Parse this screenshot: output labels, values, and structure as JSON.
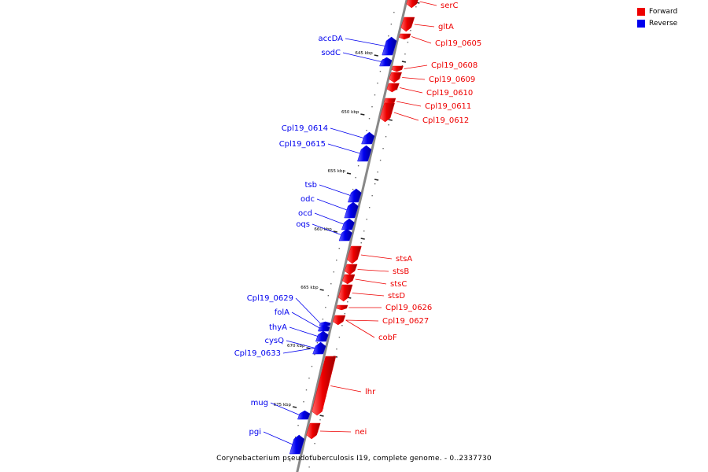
{
  "caption": "Corynebacterium pseudotuberculosis I19, complete genome. - 0..2337730",
  "colors": {
    "forward": "#ee0000",
    "reverse": "#0000ee",
    "backbone": "#888888"
  },
  "legend": [
    {
      "label": "Forward",
      "color": "#ee0000"
    },
    {
      "label": "Reverse",
      "color": "#0000ee"
    }
  ],
  "ticks": [
    "645 kbp",
    "650 kbp",
    "655 kbp",
    "660 kbp",
    "665 kbp",
    "670 kbp",
    "675 kbp"
  ],
  "genes_forward": [
    "serC",
    "gltA",
    "Cpl19_0605",
    "Cpl19_0608",
    "Cpl19_0609",
    "Cpl19_0610",
    "Cpl19_0611",
    "Cpl19_0612",
    "stsA",
    "stsB",
    "stsC",
    "stsD",
    "Cpl19_0626",
    "Cpl19_0627",
    "cobF",
    "lhr",
    "nei"
  ],
  "genes_reverse": [
    "accDA",
    "sodC",
    "Cpl19_0614",
    "Cpl19_0615",
    "tsb",
    "odc",
    "ocd",
    "oqs",
    "Cpl19_0629",
    "folA",
    "thyA",
    "cysQ",
    "Cpl19_0633",
    "mug",
    "pgi"
  ]
}
